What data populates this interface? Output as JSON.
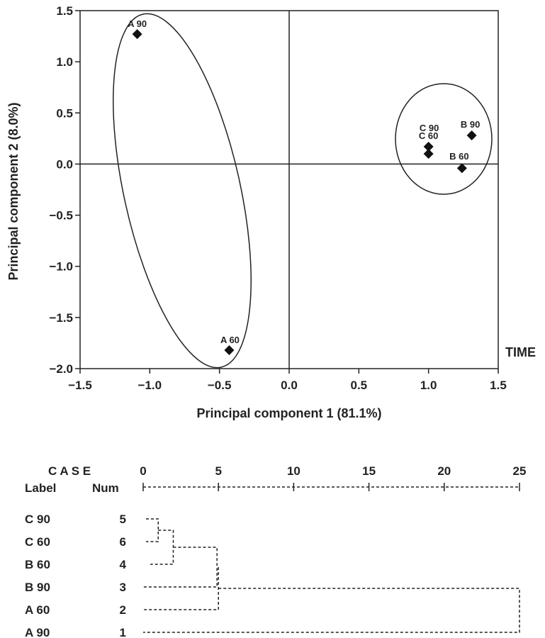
{
  "chart_data": [
    {
      "type": "scatter",
      "xlabel": "Principal component 1 (81.1%)",
      "ylabel": "Principal component 2 (8.0%)",
      "xlim": [
        -1.5,
        1.5
      ],
      "ylim": [
        -2.0,
        1.5
      ],
      "xticks": [
        -1.5,
        -1.0,
        -0.5,
        0.0,
        0.5,
        1.0,
        1.5
      ],
      "yticks": [
        1.5,
        1.0,
        0.5,
        0.0,
        -0.5,
        -1.0,
        -1.5,
        -2.0
      ],
      "xtick_labels": [
        "−1.5",
        "−1.0",
        "−0.5",
        "0.0",
        "0.5",
        "1.0",
        "1.5"
      ],
      "ytick_labels": [
        "1.5",
        "1.0",
        "0.5",
        "0.0",
        "−0.5",
        "−1.0",
        "−1.5",
        "−2.0"
      ],
      "annotation": "TIME",
      "points": [
        {
          "label": "A 90",
          "x": -1.09,
          "y": 1.27
        },
        {
          "label": "A 60",
          "x": -0.43,
          "y": -1.82
        },
        {
          "label": "C 90",
          "x": 1.0,
          "y": 0.17
        },
        {
          "label": "C 60",
          "x": 1.0,
          "y": 0.1
        },
        {
          "label": "B 90",
          "x": 1.31,
          "y": 0.28
        },
        {
          "label": "B 60",
          "x": 1.24,
          "y": -0.04
        }
      ],
      "marker": "diamond",
      "grid": false
    },
    {
      "type": "dendrogram",
      "header_case": "C A S E",
      "header_label": "Label",
      "header_num": "Num",
      "scale": [
        0,
        5,
        10,
        15,
        20,
        25
      ],
      "scale_labels": [
        "0",
        "5",
        "10",
        "15",
        "20",
        "25"
      ],
      "leaves": [
        {
          "label": "C  90",
          "num": "5"
        },
        {
          "label": "C  60",
          "num": "6"
        },
        {
          "label": "B  60",
          "num": "4"
        },
        {
          "label": "B  90",
          "num": "3"
        },
        {
          "label": "A  60",
          "num": "2"
        },
        {
          "label": "A  90",
          "num": "1"
        }
      ],
      "merges": [
        {
          "leaves": [
            "C  90",
            "C  60"
          ],
          "distance": 1
        },
        {
          "leaves": [
            "C  90/C  60",
            "B  60"
          ],
          "distance": 2
        },
        {
          "leaves": [
            "C/B60",
            "B  90"
          ],
          "distance": 5
        },
        {
          "leaves": [
            "C/B",
            "A  60"
          ],
          "distance": 5
        },
        {
          "leaves": [
            "C/B/A60",
            "A  90"
          ],
          "distance": 25
        }
      ]
    }
  ]
}
